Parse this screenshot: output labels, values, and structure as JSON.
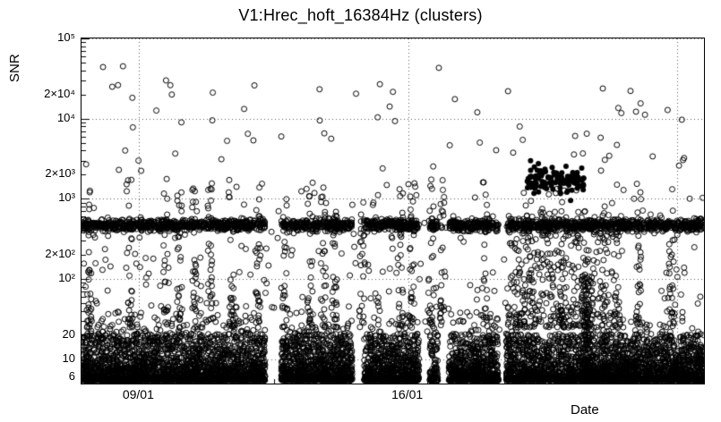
{
  "chart_data": {
    "type": "scatter",
    "title": "V1:Hrec_hoft_16384Hz (clusters)",
    "xlabel": "Date",
    "ylabel": "SNR",
    "y_scale": "log",
    "ylim": [
      5,
      100000
    ],
    "x_unit": "days",
    "xlim": [
      0,
      16.2
    ],
    "x_ticks": [
      {
        "day": 1.5,
        "label": "09/01"
      },
      {
        "day": 8.5,
        "label": "16/01"
      },
      {
        "day": 15.5,
        "label": ""
      }
    ],
    "x_minor_tick_step_days": 1,
    "y_ticks": [
      {
        "value": 6,
        "label": "6"
      },
      {
        "value": 10,
        "label": "10"
      },
      {
        "value": 20,
        "label": "20"
      },
      {
        "value": 100,
        "label": "10²"
      },
      {
        "value": 200,
        "label": "2×10²"
      },
      {
        "value": 1000,
        "label": "10³"
      },
      {
        "value": 2000,
        "label": "2×10³"
      },
      {
        "value": 10000,
        "label": "10⁴"
      },
      {
        "value": 20000,
        "label": "2×10⁴"
      },
      {
        "value": 100000,
        "label": "10⁵"
      }
    ],
    "grid": {
      "style": "dotted",
      "color": "#000000",
      "x_days": [
        1.5,
        8.5,
        15.5
      ],
      "y_values": [
        10,
        100,
        1000,
        10000,
        100000
      ]
    },
    "marker": {
      "shape": "open-circle",
      "radius": 3,
      "color": "#000000"
    },
    "frame_color": "#000000",
    "background": "#ffffff",
    "seed": 42,
    "gaps_days": [
      [
        4.78,
        5.2
      ],
      [
        7.05,
        7.35
      ],
      [
        8.78,
        9.06
      ],
      [
        9.28,
        9.56
      ],
      [
        10.85,
        11.05
      ]
    ],
    "clusters": [
      {
        "name": "noise-floor",
        "count": 7000,
        "x": {
          "min": 0,
          "max": 16.2,
          "respect_gaps": true
        },
        "y": {
          "dist": "floor",
          "base": 5.5,
          "span_dex": 0.58,
          "power": 3
        }
      },
      {
        "name": "noise-floor-tail",
        "count": 900,
        "x": {
          "min": 0,
          "max": 16.2,
          "respect_gaps": true
        },
        "y": {
          "dist": "floor",
          "base": 7,
          "span_dex": 0.75,
          "power": 2
        }
      },
      {
        "name": "snr-band-500",
        "count": 2200,
        "x": {
          "min": 0,
          "max": 16.2,
          "respect_gaps": true
        },
        "y": {
          "dist": "lognormal",
          "center": 470,
          "sigma_dex": 0.035
        }
      },
      {
        "name": "mid-scatter",
        "count": 300,
        "x": {
          "min": 0,
          "max": 16.2,
          "respect_gaps": false
        },
        "y": {
          "dist": "floor",
          "base": 22,
          "span_dex": 1.85,
          "power": 1.7
        }
      },
      {
        "name": "right-region-scatter",
        "count": 380,
        "x": {
          "min": 11.1,
          "max": 14.1,
          "respect_gaps": false
        },
        "y": {
          "dist": "floor",
          "base": 25,
          "span_dex": 1.45,
          "power": 1.4
        }
      },
      {
        "name": "right-tower",
        "count": 130,
        "x": {
          "min": 13.02,
          "max": 13.32,
          "respect_gaps": false
        },
        "y": {
          "dist": "floor",
          "base": 6,
          "span_dex": 1.28,
          "power": 1.35
        }
      },
      {
        "name": "topright-clump",
        "count": 110,
        "x": {
          "min": 11.6,
          "max": 13.1,
          "respect_gaps": false
        },
        "y": {
          "dist": "lognormal",
          "center": 1700,
          "sigma_dex": 0.09
        },
        "filled": true
      },
      {
        "name": "high-outliers",
        "count": 55,
        "x": {
          "min": 0.2,
          "max": 16.1,
          "respect_gaps": false
        },
        "y": {
          "dist": "loguniform",
          "min": 2200,
          "max": 28000
        }
      }
    ],
    "stripes": {
      "count_per_stripe": 26,
      "width_days": 0.14,
      "ymin": 25,
      "ymax": 1800,
      "power": 1.6,
      "days": [
        0.2,
        1.25,
        2.2,
        2.55,
        2.95,
        3.35,
        3.9,
        4.6,
        5.3,
        5.95,
        6.3,
        6.6,
        7.3,
        8.3,
        8.6,
        9.1,
        9.4,
        10.5,
        12.5,
        14.5,
        15.35
      ]
    },
    "featured_points": [
      [
        0.56,
        44000
      ],
      [
        1.08,
        45000
      ],
      [
        0.8,
        25000
      ],
      [
        2.2,
        30000
      ],
      [
        2.35,
        20000
      ],
      [
        2.6,
        9000
      ],
      [
        4.5,
        26000
      ],
      [
        5.2,
        6000
      ],
      [
        6.2,
        9500
      ],
      [
        9.3,
        43000
      ],
      [
        10.3,
        12000
      ],
      [
        11.1,
        22000
      ],
      [
        13.15,
        6500
      ],
      [
        15.55,
        2600
      ],
      [
        0.12,
        2700
      ]
    ]
  }
}
